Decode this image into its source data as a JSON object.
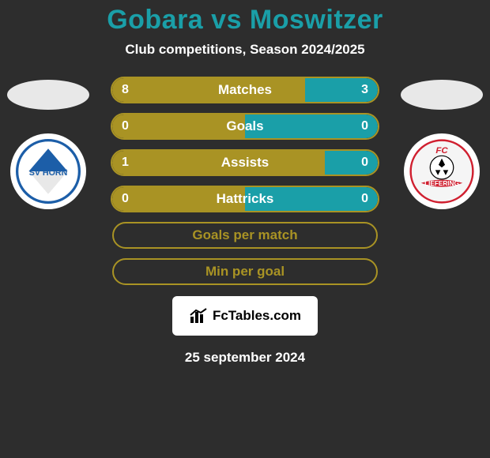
{
  "title": "Gobara vs Moswitzer",
  "subtitle": "Club competitions, Season 2024/2025",
  "date": "25 september 2024",
  "brand": "FcTables.com",
  "colors": {
    "background": "#2d2d2d",
    "title_color": "#1a9fa8",
    "text_color": "#ffffff",
    "left_bar_color": "#a99324",
    "right_bar_color": "#1a9fa8",
    "plain_bar_text": "#a99324",
    "plain_bar_border": "#a99324",
    "ellipse_bg": "#e8e8e8",
    "club_bg": "#ffffff"
  },
  "stats": [
    {
      "label": "Matches",
      "left_val": "8",
      "right_val": "3",
      "left_pct": 72.7,
      "right_pct": 27.3,
      "has_values": true
    },
    {
      "label": "Goals",
      "left_val": "0",
      "right_val": "0",
      "left_pct": 50,
      "right_pct": 50,
      "has_values": true
    },
    {
      "label": "Assists",
      "left_val": "1",
      "right_val": "0",
      "left_pct": 80,
      "right_pct": 20,
      "has_values": true
    },
    {
      "label": "Hattricks",
      "left_val": "0",
      "right_val": "0",
      "left_pct": 50,
      "right_pct": 50,
      "has_values": true
    }
  ],
  "plain_stats": [
    {
      "label": "Goals per match"
    },
    {
      "label": "Min per goal"
    }
  ],
  "left_club": {
    "name": "SV Horn",
    "badge_bg": "#ffffff",
    "primary": "#1c5ea8"
  },
  "right_club": {
    "name": "FC Liefering",
    "badge_bg": "#ffffff",
    "primary": "#d02030"
  }
}
